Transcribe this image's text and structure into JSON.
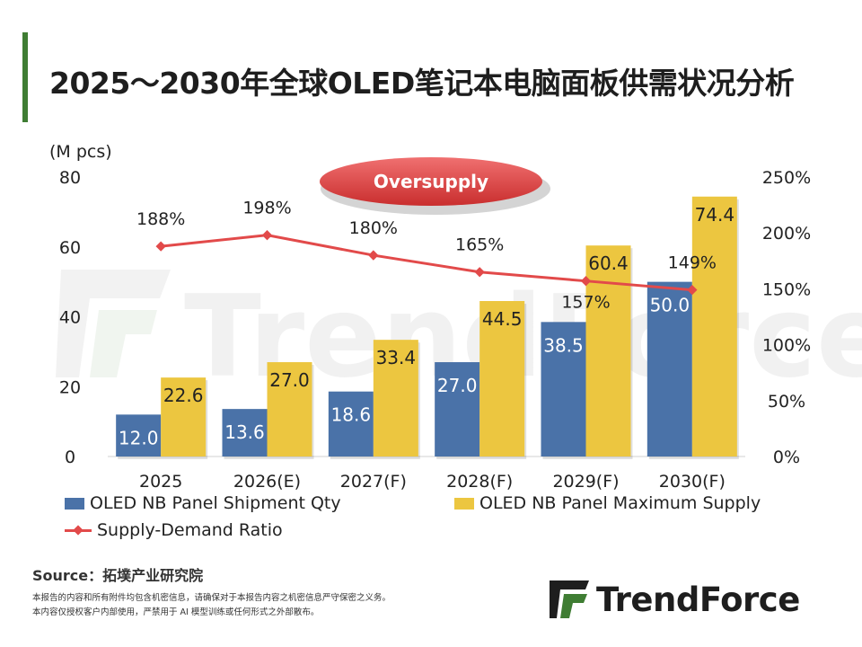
{
  "title": "2025～2030年全球OLED笔记本电脑面板供需状况分析",
  "unit_label": "(M pcs)",
  "annotation": "Oversupply",
  "watermark": "TrendForce",
  "source": "Source：拓墣产业研究院",
  "disclaimer": [
    "本报告的内容和所有附件均包含机密信息，请确保对于本报告内容之机密信息严守保密之义务。",
    "本内容仅授权客户内部使用，严禁用于 AI 模型训练或任何形式之外部散布。"
  ],
  "logo_text": "TrendForce",
  "colors": {
    "shipment": "#4a72a8",
    "supply": "#ecc640",
    "ratio": "#e24a4a",
    "accent": "#3f7d33"
  },
  "chart_data": {
    "type": "bar",
    "categories": [
      "2025",
      "2026(E)",
      "2027(F)",
      "2028(F)",
      "2029(F)",
      "2030(F)"
    ],
    "series": [
      {
        "name": "OLED NB Panel Shipment Qty",
        "values": [
          12.0,
          13.6,
          18.6,
          27.0,
          38.5,
          50.0
        ],
        "labels": [
          "12.0",
          "13.6",
          "18.6",
          "27.0",
          "38.5",
          "50.0"
        ]
      },
      {
        "name": "OLED NB Panel Maximum Supply",
        "values": [
          22.6,
          27.0,
          33.4,
          44.5,
          60.4,
          74.4
        ],
        "labels": [
          "22.6",
          "27.0",
          "33.4",
          "44.5",
          "60.4",
          "74.4"
        ]
      }
    ],
    "line_series": {
      "name": "Supply-Demand Ratio",
      "values": [
        188,
        198,
        180,
        165,
        157,
        149
      ],
      "labels": [
        "188%",
        "198%",
        "180%",
        "165%",
        "157%",
        "149%"
      ]
    },
    "ylim": [
      0,
      80
    ],
    "y_ticks": [
      "0",
      "20",
      "40",
      "60",
      "80"
    ],
    "y2lim": [
      0,
      250
    ],
    "y2_ticks": [
      "0%",
      "50%",
      "100%",
      "150%",
      "200%",
      "250%"
    ],
    "legend_position": "bottom"
  }
}
